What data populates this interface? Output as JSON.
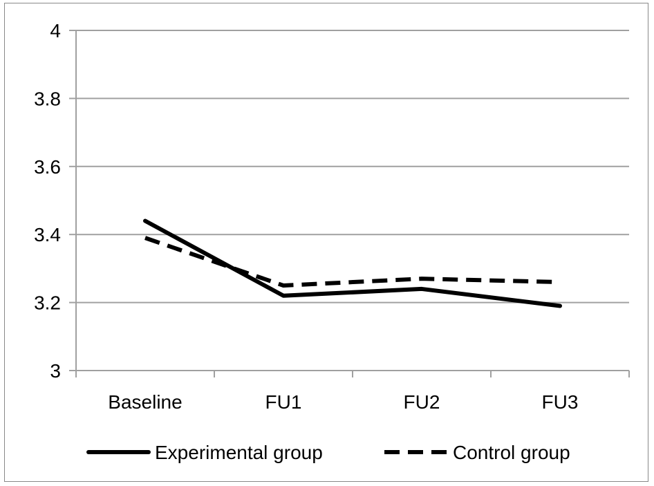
{
  "chart_data": {
    "type": "line",
    "categories": [
      "Baseline",
      "FU1",
      "FU2",
      "FU3"
    ],
    "series": [
      {
        "name": "Experimental group",
        "values": [
          3.44,
          3.22,
          3.24,
          3.19
        ],
        "style": "solid",
        "color": "#000000"
      },
      {
        "name": "Control group",
        "values": [
          3.39,
          3.25,
          3.27,
          3.26
        ],
        "style": "dashed",
        "color": "#000000"
      }
    ],
    "yticks": [
      "3",
      "3.2",
      "3.4",
      "3.6",
      "3.8",
      "4"
    ],
    "ylim": [
      3,
      4
    ],
    "grid": true,
    "gridColor": "#a0a0a0",
    "legend_position": "bottom"
  }
}
